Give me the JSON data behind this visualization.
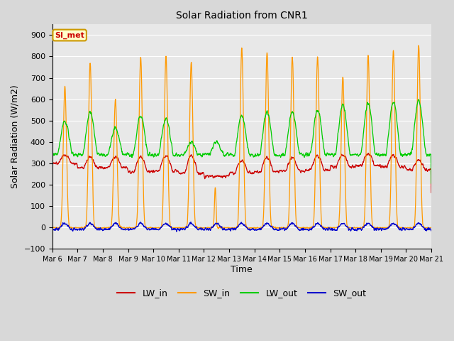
{
  "title": "Solar Radiation from CNR1",
  "xlabel": "Time",
  "ylabel": "Solar Radiation (W/m2)",
  "ylim": [
    -100,
    950
  ],
  "xlim_days": [
    6,
    21
  ],
  "xtick_labels": [
    "Mar 6",
    "Mar 7",
    "Mar 8",
    "Mar 9",
    "Mar 10",
    "Mar 11",
    "Mar 12",
    "Mar 13",
    "Mar 14",
    "Mar 15",
    "Mar 16",
    "Mar 17",
    "Mar 18",
    "Mar 19",
    "Mar 20",
    "Mar 21"
  ],
  "series_colors": {
    "LW_in": "#cc0000",
    "SW_in": "#ff9900",
    "LW_out": "#00cc00",
    "SW_out": "#0000cc"
  },
  "annotation_text": "SI_met",
  "annotation_color": "#cc0000",
  "annotation_bg": "#ffffcc",
  "annotation_border": "#cc9900",
  "background_color": "#d8d8d8",
  "plot_bg": "#e8e8e8",
  "grid_color": "#ffffff",
  "figsize": [
    6.4,
    4.8
  ],
  "dpi": 100,
  "sw_in_peaks": [
    660,
    770,
    600,
    800,
    805,
    775,
    0,
    840,
    820,
    800,
    800,
    710,
    810,
    830,
    855
  ],
  "sw_in_partial_day12": [
    175,
    195
  ],
  "lw_out_peaks": [
    500,
    540,
    465,
    520,
    510,
    400,
    400,
    520,
    540,
    540,
    550,
    575,
    580,
    590,
    595
  ],
  "lw_in_base": [
    300,
    280,
    280,
    260,
    265,
    255,
    240,
    255,
    260,
    265,
    270,
    285,
    290,
    285,
    270
  ],
  "lw_in_daybump": [
    40,
    50,
    50,
    70,
    70,
    80,
    0,
    60,
    70,
    60,
    65,
    55,
    55,
    50,
    45
  ]
}
